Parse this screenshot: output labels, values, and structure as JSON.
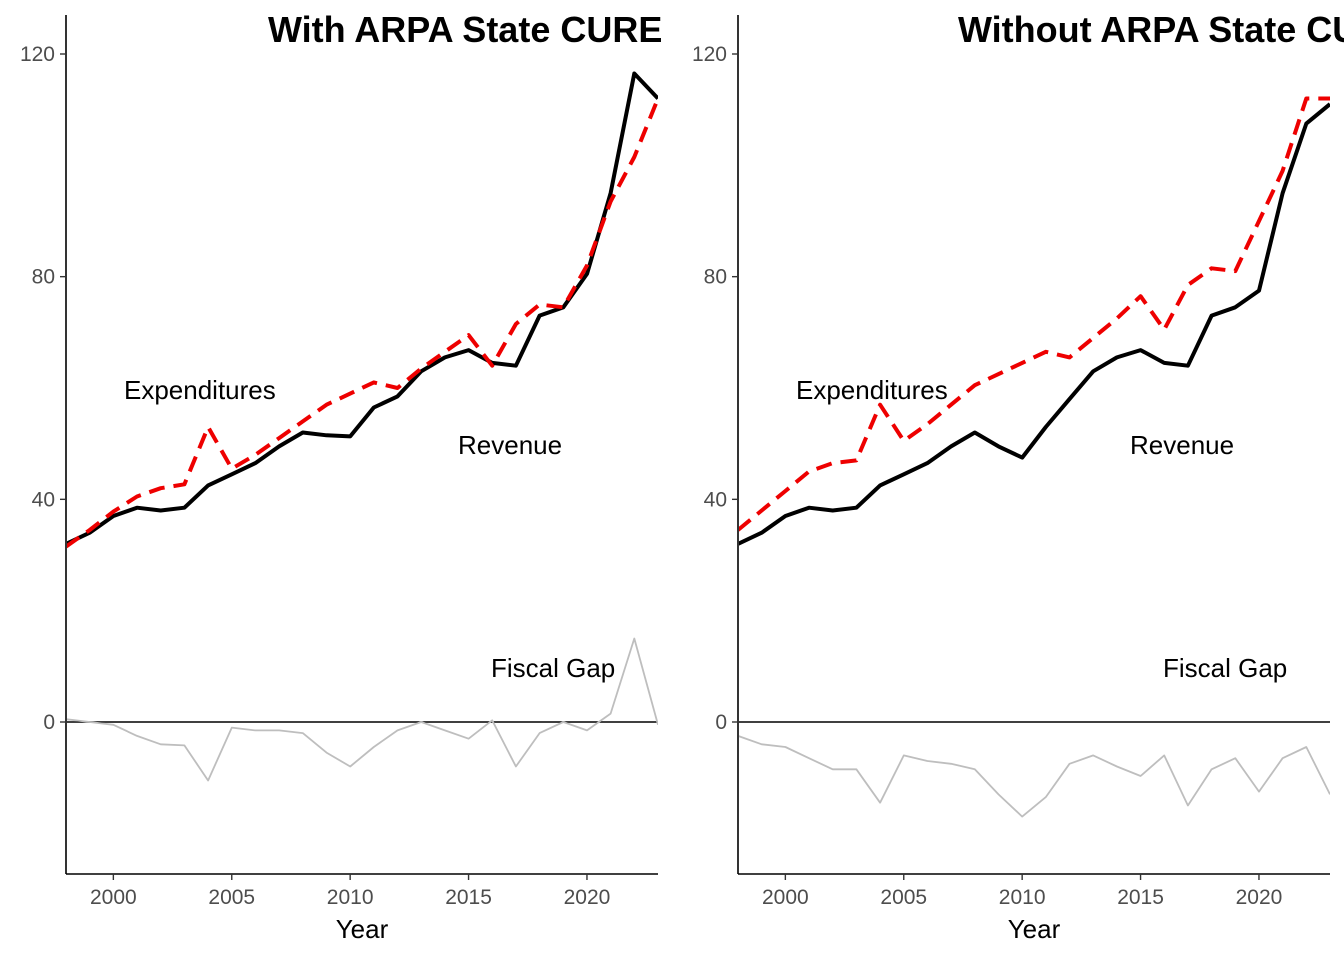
{
  "chart_data": [
    {
      "type": "line",
      "title": "With ARPA State CURE",
      "xlabel": "Year",
      "ylabel": "",
      "xlim": [
        1998,
        2023
      ],
      "ylim": [
        -27,
        128
      ],
      "x_ticks": [
        2000,
        2005,
        2010,
        2015,
        2020
      ],
      "y_ticks": [
        0,
        40,
        80,
        120
      ],
      "x": [
        1998,
        1999,
        2000,
        2001,
        2002,
        2003,
        2004,
        2005,
        2006,
        2007,
        2008,
        2009,
        2010,
        2011,
        2012,
        2013,
        2014,
        2015,
        2016,
        2017,
        2018,
        2019,
        2020,
        2021,
        2022,
        2023
      ],
      "series": [
        {
          "name": "Revenue",
          "style": "solid",
          "color": "#000000",
          "values": [
            32,
            34,
            37,
            38.5,
            38,
            38.5,
            42.5,
            44.5,
            46.5,
            49.5,
            52,
            51.5,
            51.3,
            56.5,
            58.5,
            63,
            65.5,
            66.8,
            64.5,
            64,
            73,
            74.5,
            80.5,
            95,
            116.5,
            112
          ]
        },
        {
          "name": "Expenditures",
          "style": "dashed",
          "color": "#ee0000",
          "values": [
            31.5,
            34.5,
            37.8,
            40.5,
            42,
            42.7,
            53,
            45.5,
            48,
            51,
            54,
            57,
            59,
            61,
            60,
            63.5,
            66.5,
            69.5,
            64,
            71.5,
            75,
            74.5,
            82,
            93.5,
            101.5,
            112
          ]
        },
        {
          "name": "Fiscal Gap",
          "style": "thin",
          "color": "#bebebe",
          "values": [
            0.5,
            0,
            -0.5,
            -2.5,
            -4,
            -4.2,
            -10.5,
            -1,
            -1.5,
            -1.5,
            -2,
            -5.5,
            -8,
            -4.5,
            -1.5,
            0,
            -1.5,
            -3,
            0.3,
            -8,
            -2,
            0,
            -1.5,
            1.5,
            15,
            -0.5
          ]
        }
      ],
      "annotations": {
        "expenditures": "Expenditures",
        "revenue": "Revenue",
        "fiscal_gap": "Fiscal Gap"
      }
    },
    {
      "type": "line",
      "title": "Without ARPA State CURE",
      "xlabel": "Year",
      "ylabel": "",
      "xlim": [
        1998,
        2023
      ],
      "ylim": [
        -27,
        128
      ],
      "x_ticks": [
        2000,
        2005,
        2010,
        2015,
        2020
      ],
      "y_ticks": [
        0,
        40,
        80,
        120
      ],
      "x": [
        1998,
        1999,
        2000,
        2001,
        2002,
        2003,
        2004,
        2005,
        2006,
        2007,
        2008,
        2009,
        2010,
        2011,
        2012,
        2013,
        2014,
        2015,
        2016,
        2017,
        2018,
        2019,
        2020,
        2021,
        2022,
        2023
      ],
      "series": [
        {
          "name": "Revenue",
          "style": "solid",
          "color": "#000000",
          "values": [
            32,
            34,
            37,
            38.5,
            38,
            38.5,
            42.5,
            44.5,
            46.5,
            49.5,
            52,
            49.5,
            47.5,
            53,
            58,
            63,
            65.5,
            66.8,
            64.5,
            64,
            73,
            74.5,
            77.5,
            95,
            107.5,
            111
          ]
        },
        {
          "name": "Expenditures",
          "style": "dashed",
          "color": "#ee0000",
          "values": [
            34.5,
            38,
            41.5,
            45,
            46.5,
            47,
            57,
            50.5,
            53.5,
            57,
            60.5,
            62.5,
            64.5,
            66.5,
            65.5,
            69,
            72.5,
            76.5,
            70.5,
            78.5,
            81.5,
            81,
            90,
            99,
            112,
            112
          ]
        },
        {
          "name": "Fiscal Gap",
          "style": "thin",
          "color": "#bebebe",
          "values": [
            -2.5,
            -4,
            -4.5,
            -6.5,
            -8.5,
            -8.5,
            -14.5,
            -6,
            -7,
            -7.5,
            -8.5,
            -13,
            -17,
            -13.5,
            -7.5,
            -6,
            -8,
            -9.7,
            -6,
            -15,
            -8.5,
            -6.5,
            -12.5,
            -6.5,
            -4.5,
            -13
          ]
        }
      ],
      "annotations": {
        "expenditures": "Expenditures",
        "revenue": "Revenue",
        "fiscal_gap": "Fiscal Gap"
      }
    }
  ]
}
